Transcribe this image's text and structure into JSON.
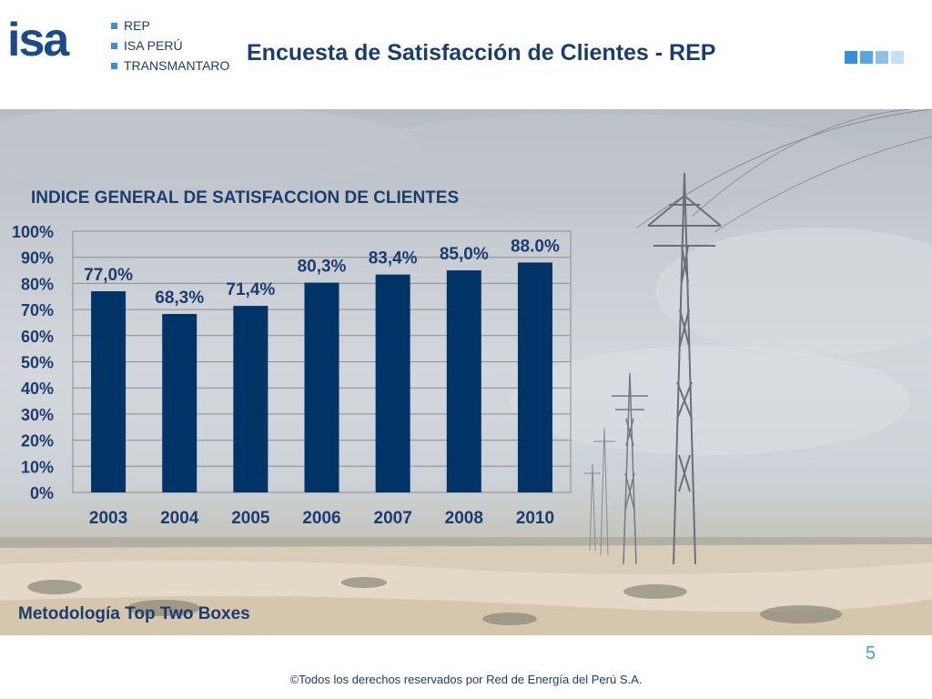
{
  "header": {
    "logo_text": "isa",
    "companies": [
      "REP",
      "ISA PERÚ",
      "TRANSMANTARO"
    ],
    "title": "Encuesta de Satisfacción de Clientes - REP",
    "accent_colors": [
      "#3a8fd1",
      "#5aa6de",
      "#8cc2ea",
      "#c4dff3"
    ]
  },
  "chart_data": {
    "type": "bar",
    "title": "INDICE GENERAL DE SATISFACCION DE CLIENTES",
    "categories": [
      "2003",
      "2004",
      "2005",
      "2006",
      "2007",
      "2008",
      "2010"
    ],
    "values": [
      77.0,
      68.3,
      71.4,
      80.3,
      83.4,
      85.0,
      88.0
    ],
    "data_labels": [
      "77,0%",
      "68,3%",
      "71,4%",
      "80,3%",
      "83,4%",
      "85,0%",
      "88.0%"
    ],
    "ylim": [
      0,
      100
    ],
    "yticks": [
      "0%",
      "10%",
      "20%",
      "30%",
      "40%",
      "50%",
      "60%",
      "70%",
      "80%",
      "90%",
      "100%"
    ],
    "grid": true,
    "bar_color": "#003366"
  },
  "methodology": "Metodología Top Two Boxes",
  "footer": {
    "page_number": "5",
    "copyright": "©Todos los derechos reservados por Red de Energía del Perú S.A."
  }
}
